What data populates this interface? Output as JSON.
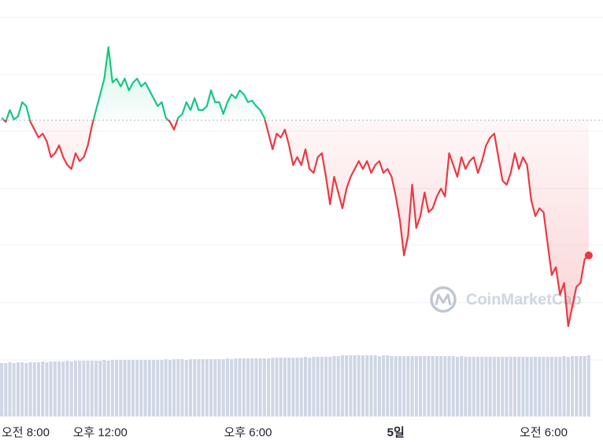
{
  "chart_data": {
    "type": "line",
    "watermark": "CoinMarketCap",
    "x": [
      480,
      490,
      500,
      510,
      520,
      530,
      540,
      550,
      560,
      570,
      580,
      590,
      600,
      610,
      620,
      630,
      640,
      650,
      660,
      670,
      680,
      690,
      700,
      710,
      720,
      730,
      740,
      750,
      760,
      770,
      780,
      790,
      800,
      810,
      820,
      830,
      840,
      850,
      860,
      870,
      880,
      890,
      900,
      910,
      920,
      930,
      940,
      950,
      960,
      970,
      980,
      990,
      1000,
      1010,
      1020,
      1030,
      1040,
      1050,
      1060,
      1070,
      1080,
      1090,
      1100,
      1110,
      1120,
      1130,
      1140,
      1150,
      1160,
      1170,
      1180,
      1190,
      1200,
      1210,
      1220,
      1230,
      1240,
      1250,
      1260,
      1270,
      1280,
      1290,
      1300,
      1310,
      1320,
      1330,
      1340,
      1350,
      1360,
      1370,
      1380,
      1390,
      1400,
      1410,
      1420,
      1430,
      1440,
      1450,
      1460,
      1470,
      1480,
      1490,
      1500,
      1510,
      1520,
      1530,
      1540,
      1550,
      1560,
      1570,
      1580,
      1590,
      1600,
      1610,
      1620,
      1630,
      1640,
      1650,
      1660,
      1670,
      1680,
      1690,
      1700,
      1710,
      1720,
      1730,
      1740,
      1750,
      1760,
      1770,
      1780,
      1790,
      1800,
      1810,
      1820,
      1830,
      1840,
      1850,
      1860,
      1870,
      1880,
      1890,
      1900,
      1910
    ],
    "xlim": [
      476,
      1916
    ],
    "xticks": [
      {
        "value": 480,
        "label": "오전 8:00"
      },
      {
        "value": 720,
        "label": "오후 12:00"
      },
      {
        "value": 1080,
        "label": "오후 6:00"
      },
      {
        "value": 1440,
        "label": "5일"
      },
      {
        "value": 1800,
        "label": "오전 6:00"
      }
    ],
    "ylim": [
      0,
      470
    ],
    "yticks": [
      12,
      85,
      158,
      230,
      303,
      375,
      448
    ],
    "y2lim": [
      0,
      530
    ],
    "grid": true,
    "baseline": 317,
    "color_up": "#16c784",
    "color_down": "#ea3943",
    "series": [
      {
        "values": [
          320,
          315,
          330,
          318,
          322,
          340,
          335,
          315,
          305,
          295,
          300,
          290,
          270,
          275,
          285,
          270,
          260,
          255,
          275,
          265,
          270,
          285,
          310,
          330,
          350,
          370,
          410,
          365,
          370,
          360,
          370,
          355,
          365,
          370,
          360,
          365,
          355,
          345,
          335,
          340,
          320,
          315,
          305,
          320,
          325,
          340,
          330,
          345,
          330,
          330,
          335,
          355,
          340,
          340,
          325,
          340,
          350,
          345,
          355,
          350,
          340,
          342,
          335,
          330,
          320,
          300,
          280,
          300,
          295,
          305,
          285,
          260,
          270,
          260,
          280,
          255,
          250,
          270,
          275,
          245,
          210,
          245,
          225,
          205,
          230,
          245,
          255,
          265,
          255,
          265,
          250,
          260,
          265,
          250,
          255,
          245,
          220,
          190,
          145,
          170,
          235,
          180,
          195,
          225,
          200,
          205,
          220,
          230,
          220,
          275,
          260,
          245,
          270,
          255,
          265,
          270,
          250,
          265,
          285,
          295,
          300,
          270,
          240,
          235,
          250,
          275,
          255,
          270,
          260,
          215,
          195,
          205,
          200,
          160,
          120,
          130,
          95,
          110,
          55,
          80,
          105,
          110,
          140,
          145
        ]
      },
      {
        "type": "bar",
        "axis": "y2",
        "color": "#cfd6e4",
        "values": [
          68,
          68,
          69,
          68,
          69,
          69,
          68,
          69,
          69,
          69,
          70,
          69,
          70,
          70,
          70,
          70,
          71,
          70,
          71,
          71,
          71,
          71,
          71,
          71,
          71,
          72,
          71,
          72,
          72,
          72,
          72,
          72,
          72,
          72,
          72,
          72,
          72,
          72,
          72,
          72,
          73,
          72,
          73,
          73,
          73,
          72,
          73,
          73,
          73,
          73,
          73,
          73,
          73,
          73,
          73,
          74,
          73,
          74,
          74,
          74,
          74,
          74,
          74,
          74,
          74,
          74,
          75,
          75,
          75,
          75,
          75,
          75,
          75,
          75,
          76,
          75,
          76,
          76,
          76,
          76,
          76,
          77,
          77,
          78,
          78,
          78,
          78,
          78,
          78,
          78,
          78,
          78,
          77,
          78,
          78,
          77,
          77,
          77,
          77,
          77,
          77,
          77,
          77,
          77,
          77,
          77,
          77,
          77,
          77,
          77,
          77,
          76,
          77,
          76,
          76,
          76,
          76,
          76,
          76,
          76,
          76,
          76,
          76,
          76,
          76,
          76,
          76,
          76,
          76,
          76,
          76,
          76,
          76,
          76,
          76,
          76,
          76,
          77,
          76,
          77,
          77,
          77,
          77,
          78
        ]
      }
    ]
  }
}
